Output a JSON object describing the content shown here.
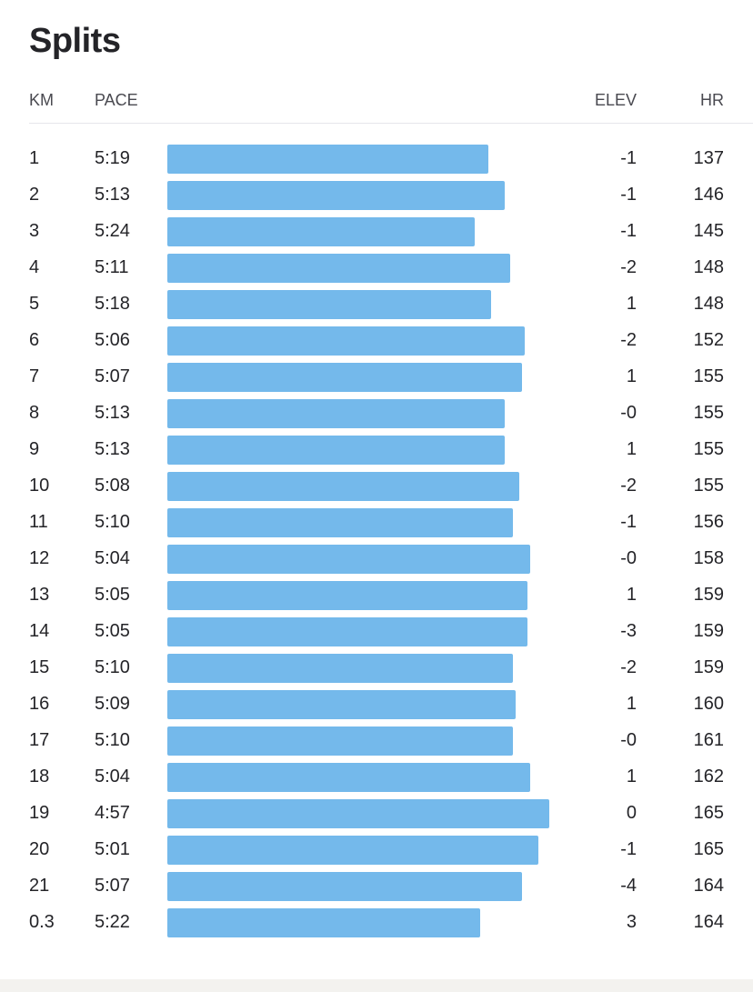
{
  "title": "Splits",
  "columns": {
    "km": "KM",
    "pace": "PACE",
    "elev": "ELEV",
    "hr": "HR"
  },
  "colors": {
    "bar": "#74b9eb",
    "text": "#242428"
  },
  "splits": [
    {
      "km": "1",
      "pace": "5:19",
      "elev": "-1",
      "hr": "137"
    },
    {
      "km": "2",
      "pace": "5:13",
      "elev": "-1",
      "hr": "146"
    },
    {
      "km": "3",
      "pace": "5:24",
      "elev": "-1",
      "hr": "145"
    },
    {
      "km": "4",
      "pace": "5:11",
      "elev": "-2",
      "hr": "148"
    },
    {
      "km": "5",
      "pace": "5:18",
      "elev": "1",
      "hr": "148"
    },
    {
      "km": "6",
      "pace": "5:06",
      "elev": "-2",
      "hr": "152"
    },
    {
      "km": "7",
      "pace": "5:07",
      "elev": "1",
      "hr": "155"
    },
    {
      "km": "8",
      "pace": "5:13",
      "elev": "-0",
      "hr": "155"
    },
    {
      "km": "9",
      "pace": "5:13",
      "elev": "1",
      "hr": "155"
    },
    {
      "km": "10",
      "pace": "5:08",
      "elev": "-2",
      "hr": "155"
    },
    {
      "km": "11",
      "pace": "5:10",
      "elev": "-1",
      "hr": "156"
    },
    {
      "km": "12",
      "pace": "5:04",
      "elev": "-0",
      "hr": "158"
    },
    {
      "km": "13",
      "pace": "5:05",
      "elev": "1",
      "hr": "159"
    },
    {
      "km": "14",
      "pace": "5:05",
      "elev": "-3",
      "hr": "159"
    },
    {
      "km": "15",
      "pace": "5:10",
      "elev": "-2",
      "hr": "159"
    },
    {
      "km": "16",
      "pace": "5:09",
      "elev": "1",
      "hr": "160"
    },
    {
      "km": "17",
      "pace": "5:10",
      "elev": "-0",
      "hr": "161"
    },
    {
      "km": "18",
      "pace": "5:04",
      "elev": "1",
      "hr": "162"
    },
    {
      "km": "19",
      "pace": "4:57",
      "elev": "0",
      "hr": "165"
    },
    {
      "km": "20",
      "pace": "5:01",
      "elev": "-1",
      "hr": "165"
    },
    {
      "km": "21",
      "pace": "5:07",
      "elev": "-4",
      "hr": "164"
    },
    {
      "km": "0.3",
      "pace": "5:22",
      "elev": "3",
      "hr": "164"
    }
  ]
}
